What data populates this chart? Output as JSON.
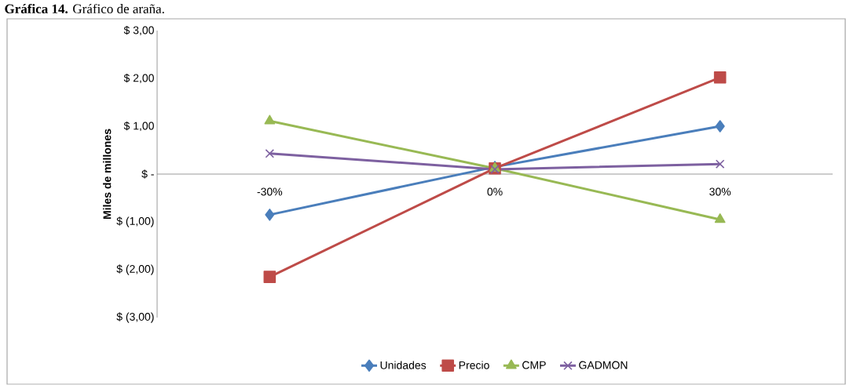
{
  "chart_data": {
    "type": "line",
    "title": "**Gráfica 14.** Gráfico de araña.",
    "ylabel": "Miles de millones",
    "categories": [
      "-30%",
      "0%",
      "30%"
    ],
    "series": [
      {
        "name": "Unidades",
        "color": "#4a7ebb",
        "marker": "diamond",
        "values": [
          -0.85,
          0.15,
          1.0
        ]
      },
      {
        "name": "Precio",
        "color": "#be4b48",
        "marker": "square",
        "values": [
          -2.15,
          0.12,
          2.02
        ]
      },
      {
        "name": "CMP",
        "color": "#98b954",
        "marker": "triangle",
        "values": [
          1.11,
          0.12,
          -0.95
        ]
      },
      {
        "name": "GADMON",
        "color": "#7d60a0",
        "marker": "cross",
        "values": [
          0.43,
          0.1,
          0.21
        ]
      }
    ],
    "ylim": [
      -3,
      3
    ],
    "yticks": [
      {
        "value": -3,
        "label": "$ (3,00)"
      },
      {
        "value": -2,
        "label": "$ (2,00)"
      },
      {
        "value": -1,
        "label": "$ (1,00)"
      },
      {
        "value": 0,
        "label": "$ -"
      },
      {
        "value": 1,
        "label": "$ 1,00"
      },
      {
        "value": 2,
        "label": "$ 2,00"
      },
      {
        "value": 3,
        "label": "$ 3,00"
      }
    ],
    "grid": false,
    "legend": "bottom",
    "line_style": "solid"
  }
}
